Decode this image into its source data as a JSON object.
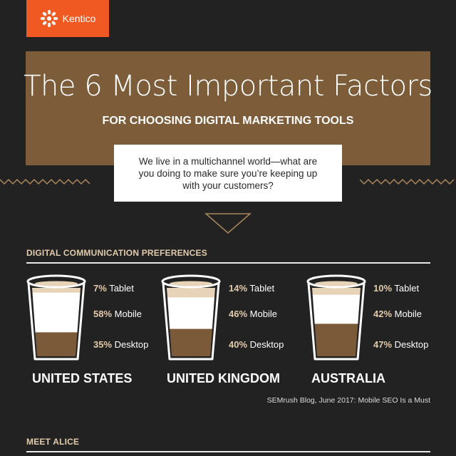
{
  "brand": {
    "name": "Kentico",
    "color": "#f05a22"
  },
  "hero": {
    "title": "The 6 Most Important Factors",
    "subtitle": "FOR CHOOSING DIGITAL MARKETING TOOLS",
    "quote": "We live in a multichannel world—what are you doing to make sure you’re keeping up with your customers?"
  },
  "section1": {
    "title": "DIGITAL COMMUNICATION PREFERENCES",
    "countries": [
      {
        "name": "UNITED STATES",
        "tablet": {
          "pct": "7%",
          "label": "Tablet",
          "value": 7
        },
        "mobile": {
          "pct": "58%",
          "label": "Mobile",
          "value": 58
        },
        "desktop": {
          "pct": "35%",
          "label": "Desktop",
          "value": 35
        }
      },
      {
        "name": "UNITED KINGDOM",
        "tablet": {
          "pct": "14%",
          "label": "Tablet",
          "value": 14
        },
        "mobile": {
          "pct": "46%",
          "label": "Mobile",
          "value": 46
        },
        "desktop": {
          "pct": "40%",
          "label": "Desktop",
          "value": 40
        }
      },
      {
        "name": "AUSTRALIA",
        "tablet": {
          "pct": "10%",
          "label": "Tablet",
          "value": 10
        },
        "mobile": {
          "pct": "42%",
          "label": "Mobile",
          "value": 42
        },
        "desktop": {
          "pct": "47%",
          "label": "Desktop",
          "value": 47
        }
      }
    ],
    "source": "SEMrush Blog, June 2017: Mobile SEO Is a Must"
  },
  "section2": {
    "title": "MEET ALICE"
  },
  "colors": {
    "background": "#222222",
    "hero": "#7d5c39",
    "tablet": "#e6d3b8",
    "mobile": "#ffffff",
    "desktop": "#7b5a3a",
    "accent": "#e2cbab",
    "ornament": "#a9865c"
  }
}
